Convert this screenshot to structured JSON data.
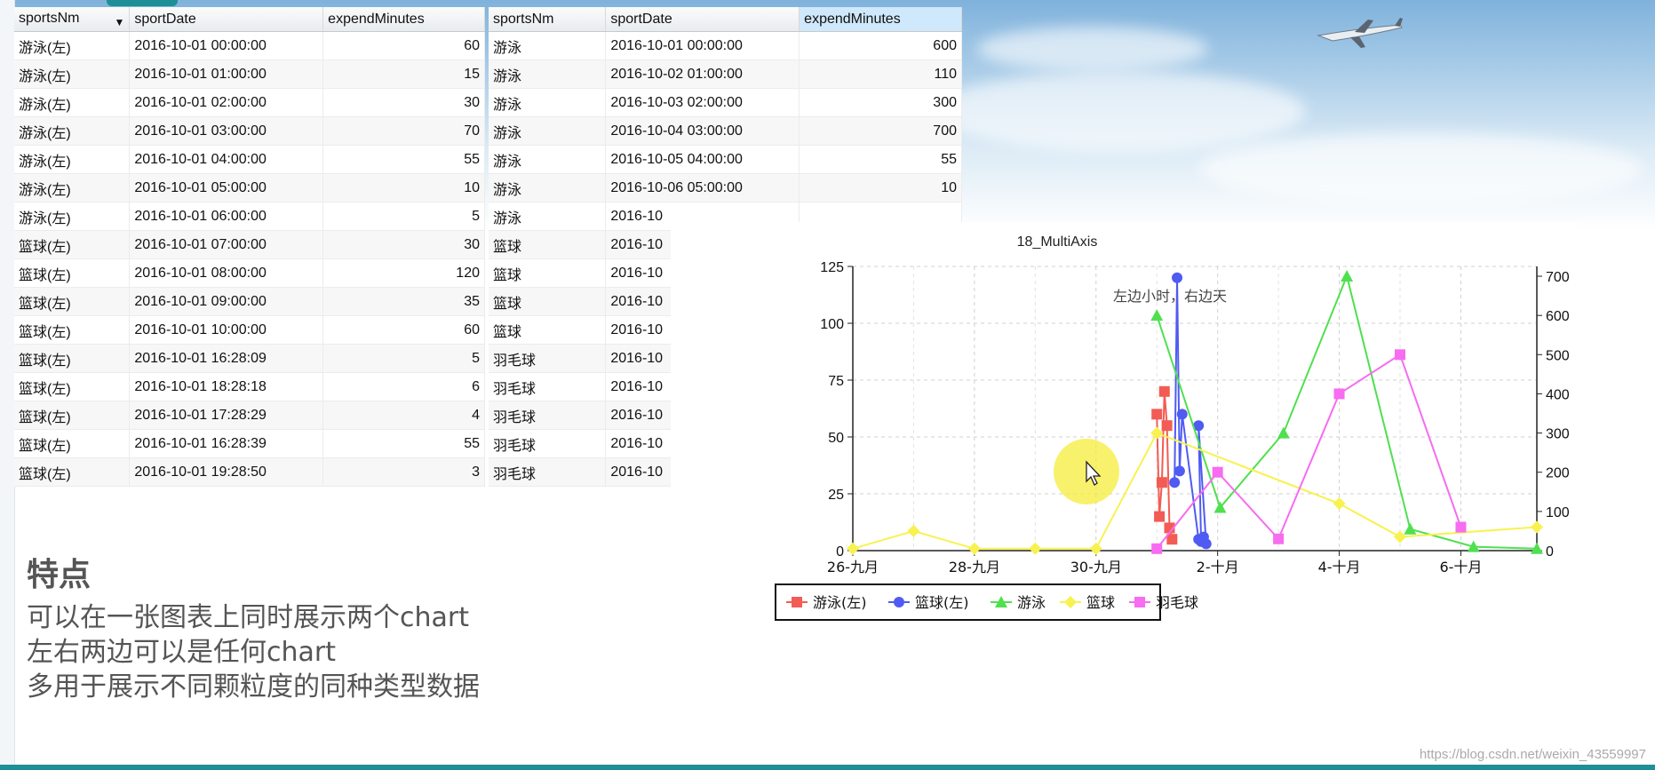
{
  "left_table": {
    "columns": [
      "sportsNm",
      "sportDate",
      "expendMinutes"
    ],
    "rows": [
      [
        "游泳(左)",
        "2016-10-01 00:00:00",
        "60"
      ],
      [
        "游泳(左)",
        "2016-10-01 01:00:00",
        "15"
      ],
      [
        "游泳(左)",
        "2016-10-01 02:00:00",
        "30"
      ],
      [
        "游泳(左)",
        "2016-10-01 03:00:00",
        "70"
      ],
      [
        "游泳(左)",
        "2016-10-01 04:00:00",
        "55"
      ],
      [
        "游泳(左)",
        "2016-10-01 05:00:00",
        "10"
      ],
      [
        "游泳(左)",
        "2016-10-01 06:00:00",
        "5"
      ],
      [
        "篮球(左)",
        "2016-10-01 07:00:00",
        "30"
      ],
      [
        "篮球(左)",
        "2016-10-01 08:00:00",
        "120"
      ],
      [
        "篮球(左)",
        "2016-10-01 09:00:00",
        "35"
      ],
      [
        "篮球(左)",
        "2016-10-01 10:00:00",
        "60"
      ],
      [
        "篮球(左)",
        "2016-10-01 16:28:09",
        "5"
      ],
      [
        "篮球(左)",
        "2016-10-01 18:28:18",
        "6"
      ],
      [
        "篮球(左)",
        "2016-10-01 17:28:29",
        "4"
      ],
      [
        "篮球(左)",
        "2016-10-01 16:28:39",
        "55"
      ],
      [
        "篮球(左)",
        "2016-10-01 19:28:50",
        "3"
      ]
    ]
  },
  "right_table": {
    "columns": [
      "sportsNm",
      "sportDate",
      "expendMinutes"
    ],
    "rows": [
      [
        "游泳",
        "2016-10-01 00:00:00",
        "600"
      ],
      [
        "游泳",
        "2016-10-02 01:00:00",
        "110"
      ],
      [
        "游泳",
        "2016-10-03 02:00:00",
        "300"
      ],
      [
        "游泳",
        "2016-10-04 03:00:00",
        "700"
      ],
      [
        "游泳",
        "2016-10-05 04:00:00",
        "55"
      ],
      [
        "游泳",
        "2016-10-06 05:00:00",
        "10"
      ],
      [
        "游泳",
        "2016-10",
        ""
      ],
      [
        "篮球",
        "2016-10",
        ""
      ],
      [
        "篮球",
        "2016-10",
        ""
      ],
      [
        "篮球",
        "2016-10",
        ""
      ],
      [
        "篮球",
        "2016-10",
        ""
      ],
      [
        "羽毛球",
        "2016-10",
        ""
      ],
      [
        "羽毛球",
        "2016-10",
        ""
      ],
      [
        "羽毛球",
        "2016-10",
        ""
      ],
      [
        "羽毛球",
        "2016-10",
        ""
      ],
      [
        "羽毛球",
        "2016-10",
        ""
      ]
    ]
  },
  "features": {
    "title": "特点",
    "lines": [
      "可以在一张图表上同时展示两个chart",
      "左右两边可以是任何chart",
      "多用于展示不同颗粒度的同种类型数据"
    ]
  },
  "watermark": "https://blog.csdn.net/weixin_43559997",
  "chart_data": {
    "type": "line",
    "title": "18_MultiAxis",
    "subtitle": "左边小时，右边天",
    "x_axis": {
      "type": "date",
      "range": [
        "2016-09-26",
        "2016-10-07 06:00"
      ],
      "tick_labels": [
        "26-九月",
        "28-九月",
        "30-九月",
        "2-十月",
        "4-十月",
        "6-十月"
      ],
      "tick_dates": [
        "2016-09-26",
        "2016-09-28",
        "2016-09-30",
        "2016-10-02",
        "2016-10-04",
        "2016-10-06"
      ]
    },
    "y_left": {
      "range": [
        0,
        125
      ],
      "ticks": [
        0,
        25,
        50,
        75,
        100,
        125
      ]
    },
    "y_right": {
      "range": [
        0,
        725
      ],
      "ticks": [
        0,
        100,
        200,
        300,
        400,
        500,
        600,
        700
      ]
    },
    "grid": true,
    "legend": "bottom-center",
    "series": [
      {
        "name": "游泳(左)",
        "axis": "left",
        "color": "#f25c54",
        "marker": "square",
        "points": [
          [
            "2016-10-01 00:00",
            60
          ],
          [
            "2016-10-01 01:00",
            15
          ],
          [
            "2016-10-01 02:00",
            30
          ],
          [
            "2016-10-01 03:00",
            70
          ],
          [
            "2016-10-01 04:00",
            55
          ],
          [
            "2016-10-01 05:00",
            10
          ],
          [
            "2016-10-01 06:00",
            5
          ]
        ]
      },
      {
        "name": "篮球(左)",
        "axis": "left",
        "color": "#4f5bf2",
        "marker": "circle",
        "points": [
          [
            "2016-10-01 07:00",
            30
          ],
          [
            "2016-10-01 08:00",
            120
          ],
          [
            "2016-10-01 09:00",
            35
          ],
          [
            "2016-10-01 10:00",
            60
          ],
          [
            "2016-10-01 16:28",
            5
          ],
          [
            "2016-10-01 18:28",
            6
          ],
          [
            "2016-10-01 17:28",
            4
          ],
          [
            "2016-10-01 16:28",
            55
          ],
          [
            "2016-10-01 19:28",
            3
          ]
        ]
      },
      {
        "name": "游泳",
        "axis": "right",
        "color": "#4fe04f",
        "marker": "triangle",
        "points": [
          [
            "2016-10-01 00:00",
            600
          ],
          [
            "2016-10-02 01:00",
            110
          ],
          [
            "2016-10-03 02:00",
            300
          ],
          [
            "2016-10-04 03:00",
            700
          ],
          [
            "2016-10-05 04:00",
            55
          ],
          [
            "2016-10-06 05:00",
            10
          ],
          [
            "2016-10-07 06:00",
            5
          ]
        ]
      },
      {
        "name": "篮球",
        "axis": "right",
        "color": "#f7f24f",
        "marker": "diamond",
        "points": [
          [
            "2016-09-26",
            5
          ],
          [
            "2016-09-27",
            50
          ],
          [
            "2016-09-28",
            5
          ],
          [
            "2016-09-29",
            5
          ],
          [
            "2016-09-30",
            5
          ],
          [
            "2016-10-01",
            300
          ],
          [
            "2016-10-04",
            120
          ],
          [
            "2016-10-05",
            35
          ],
          [
            "2016-10-07 06:00",
            60
          ]
        ]
      },
      {
        "name": "羽毛球",
        "axis": "right",
        "color": "#f76cf0",
        "marker": "square",
        "points": [
          [
            "2016-10-01",
            5
          ],
          [
            "2016-10-02",
            200
          ],
          [
            "2016-10-03",
            30
          ],
          [
            "2016-10-04",
            400
          ],
          [
            "2016-10-05",
            500
          ],
          [
            "2016-10-06",
            60
          ]
        ]
      }
    ]
  },
  "colors": {
    "accent": "#1e8f96",
    "pointer_highlight": "#f5ec3a"
  }
}
